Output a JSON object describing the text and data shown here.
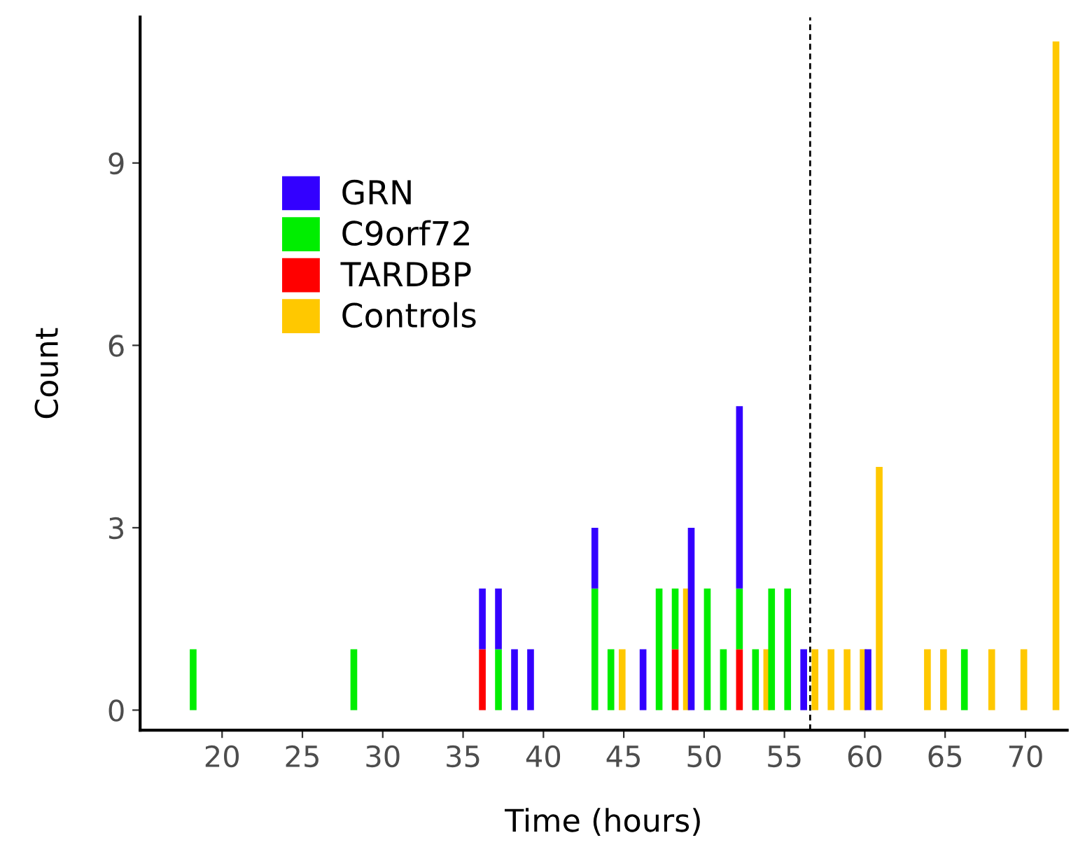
{
  "chart_data": {
    "type": "bar",
    "stacked": true,
    "xlabel": "Time (hours)",
    "ylabel": "Count",
    "x": [
      18.2,
      28.2,
      36.2,
      37.2,
      38.2,
      39.2,
      43.2,
      44.2,
      44.9,
      46.2,
      47.2,
      48.2,
      48.9,
      49.2,
      50.2,
      51.2,
      52.2,
      53.2,
      53.9,
      54.2,
      55.2,
      56.2,
      56.9,
      57.9,
      58.9,
      59.9,
      60.2,
      60.9,
      63.9,
      64.9,
      66.2,
      67.9,
      69.9,
      71.9
    ],
    "xlim": [
      14.9,
      72.6
    ],
    "xticks": [
      20,
      25,
      30,
      35,
      40,
      45,
      50,
      55,
      60,
      65,
      70
    ],
    "ylim": [
      -0.33,
      11.4
    ],
    "yticks": [
      0,
      3,
      6,
      9
    ],
    "grid": false,
    "legend": "top left",
    "ref_lines": [
      {
        "axis": "x",
        "value": 56.6,
        "line_style": "dashed",
        "color": "#000000"
      }
    ],
    "series": [
      {
        "name": "Controls",
        "color": "#ffc800",
        "values": [
          null,
          null,
          null,
          null,
          null,
          null,
          null,
          null,
          1,
          null,
          null,
          null,
          2,
          null,
          null,
          null,
          null,
          null,
          1,
          null,
          null,
          null,
          1,
          1,
          1,
          1,
          null,
          4,
          1,
          1,
          null,
          1,
          1,
          11
        ]
      },
      {
        "name": "TARDBP",
        "color": "#ff0000",
        "values": [
          null,
          null,
          1,
          null,
          null,
          null,
          null,
          null,
          null,
          null,
          null,
          1,
          null,
          null,
          null,
          null,
          1,
          null,
          null,
          null,
          null,
          null,
          null,
          null,
          null,
          null,
          null,
          null,
          null,
          null,
          null,
          null,
          null,
          null
        ]
      },
      {
        "name": "C9orf72",
        "color": "#00ee00",
        "values": [
          1,
          1,
          null,
          1,
          null,
          null,
          2,
          1,
          null,
          null,
          2,
          1,
          null,
          null,
          2,
          1,
          1,
          1,
          null,
          2,
          2,
          null,
          null,
          null,
          null,
          null,
          null,
          null,
          null,
          null,
          1,
          null,
          null,
          null
        ]
      },
      {
        "name": "GRN",
        "color": "#3300ff",
        "values": [
          null,
          null,
          1,
          1,
          1,
          1,
          1,
          null,
          null,
          1,
          null,
          null,
          null,
          3,
          null,
          null,
          3,
          null,
          null,
          null,
          null,
          1,
          null,
          null,
          null,
          null,
          1,
          null,
          null,
          null,
          null,
          null,
          null,
          null
        ]
      }
    ]
  }
}
